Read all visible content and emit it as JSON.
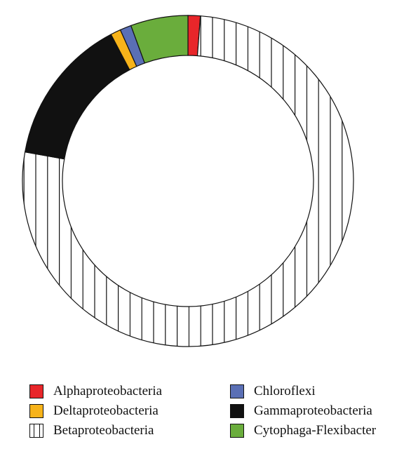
{
  "chart_data": {
    "type": "pie",
    "style": "donut",
    "legend_position": "bottom",
    "start_angle_deg": 0,
    "direction": "clockwise",
    "slices": [
      {
        "label": "Alphaproteobacteria",
        "value": 1.2,
        "color": "#e8262a",
        "pattern": "solid"
      },
      {
        "label": "Betaproteobacteria",
        "value": 76.6,
        "color": "#ffffff",
        "pattern": "vertical-hatch"
      },
      {
        "label": "Gammaproteobacteria",
        "value": 14.5,
        "color": "#111111",
        "pattern": "solid"
      },
      {
        "label": "Deltaproteobacteria",
        "value": 1.0,
        "color": "#f7b31a",
        "pattern": "solid"
      },
      {
        "label": "Chloroflexi",
        "value": 1.1,
        "color": "#5a6fb5",
        "pattern": "solid"
      },
      {
        "label": "Cytophaga-Flexibacter",
        "value": 5.6,
        "color": "#6aad3c",
        "pattern": "solid"
      }
    ],
    "legend": [
      {
        "label": "Alphaproteobacteria",
        "color": "#e8262a",
        "pattern": "solid"
      },
      {
        "label": "Chloroflexi",
        "color": "#5a6fb5",
        "pattern": "solid"
      },
      {
        "label": "Deltaproteobacteria",
        "color": "#f7b31a",
        "pattern": "solid"
      },
      {
        "label": "Gammaproteobacteria",
        "color": "#111111",
        "pattern": "solid"
      },
      {
        "label": "Betaproteobacteria",
        "color": "#ffffff",
        "pattern": "vertical-hatch"
      },
      {
        "label": "Cytophaga-Flexibacter",
        "color": "#6aad3c",
        "pattern": "solid"
      }
    ]
  }
}
